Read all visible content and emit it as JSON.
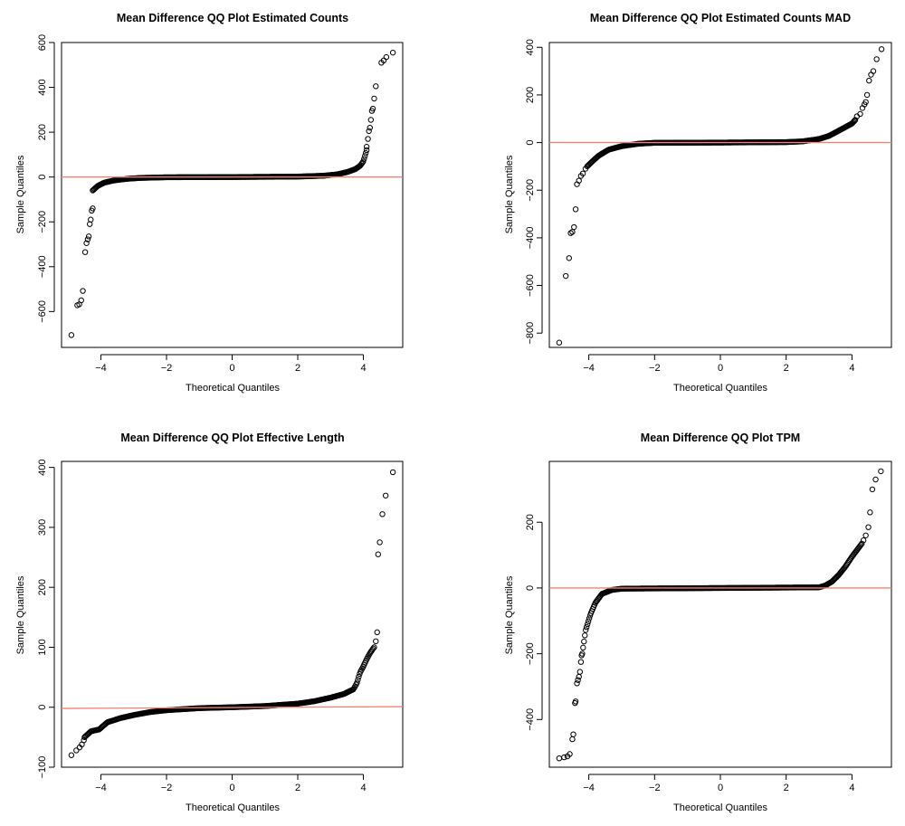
{
  "chart_data": [
    {
      "type": "scatter",
      "title": "Mean Difference QQ Plot Estimated Counts",
      "xlabel": "Theoretical Quantiles",
      "ylabel": "Sample Quantiles",
      "xlim": [
        -5.2,
        5.2
      ],
      "ylim": [
        -760,
        600
      ],
      "xticks": [
        -4,
        -2,
        0,
        2,
        4
      ],
      "yticks": [
        -600,
        -400,
        -200,
        0,
        200,
        400,
        600
      ],
      "reference_line": {
        "y": 0,
        "color": "#f4826e"
      },
      "core": {
        "range": [
          -4.25,
          4.1
        ],
        "curve": [
          [
            -4.25,
            -60
          ],
          [
            -4.1,
            -40
          ],
          [
            -3.9,
            -25
          ],
          [
            -3.6,
            -15
          ],
          [
            -3.2,
            -8
          ],
          [
            -2.8,
            -4
          ],
          [
            -2.0,
            -1
          ],
          [
            0,
            0
          ],
          [
            2.0,
            2
          ],
          [
            2.8,
            6
          ],
          [
            3.2,
            12
          ],
          [
            3.5,
            22
          ],
          [
            3.75,
            35
          ],
          [
            3.9,
            50
          ],
          [
            4.0,
            70
          ],
          [
            4.05,
            95
          ],
          [
            4.1,
            120
          ]
        ]
      },
      "points": [
        [
          -4.9,
          -705
        ],
        [
          -4.72,
          -572
        ],
        [
          -4.66,
          -568
        ],
        [
          -4.6,
          -550
        ],
        [
          -4.55,
          -508
        ],
        [
          -4.48,
          -335
        ],
        [
          -4.44,
          -295
        ],
        [
          -4.4,
          -278
        ],
        [
          -4.37,
          -265
        ],
        [
          -4.34,
          -210
        ],
        [
          -4.31,
          -190
        ],
        [
          -4.28,
          -150
        ],
        [
          -4.25,
          -140
        ],
        [
          4.1,
          135
        ],
        [
          4.14,
          170
        ],
        [
          4.17,
          205
        ],
        [
          4.2,
          220
        ],
        [
          4.23,
          255
        ],
        [
          4.26,
          295
        ],
        [
          4.29,
          305
        ],
        [
          4.33,
          350
        ],
        [
          4.38,
          405
        ],
        [
          4.55,
          510
        ],
        [
          4.62,
          520
        ],
        [
          4.7,
          535
        ],
        [
          4.9,
          555
        ]
      ]
    },
    {
      "type": "scatter",
      "title": "Mean Difference QQ Plot Estimated Counts MAD",
      "xlabel": "Theoretical Quantiles",
      "ylabel": "Sample Quantiles",
      "xlim": [
        -5.2,
        5.2
      ],
      "ylim": [
        -860,
        420
      ],
      "xticks": [
        -4,
        -2,
        0,
        2,
        4
      ],
      "yticks": [
        -800,
        -600,
        -400,
        -200,
        0,
        200,
        400
      ],
      "reference_line": {
        "y": 0,
        "color": "#f4826e"
      },
      "core": {
        "range": [
          -4.05,
          4.1
        ],
        "curve": [
          [
            -4.05,
            -100
          ],
          [
            -3.9,
            -80
          ],
          [
            -3.7,
            -55
          ],
          [
            -3.4,
            -30
          ],
          [
            -3.0,
            -15
          ],
          [
            -2.5,
            -5
          ],
          [
            -2.0,
            -1
          ],
          [
            0,
            0
          ],
          [
            2.0,
            2
          ],
          [
            2.5,
            5
          ],
          [
            3.0,
            15
          ],
          [
            3.3,
            28
          ],
          [
            3.6,
            50
          ],
          [
            3.8,
            65
          ],
          [
            4.0,
            80
          ],
          [
            4.1,
            95
          ]
        ]
      },
      "points": [
        [
          -4.9,
          -840
        ],
        [
          -4.7,
          -560
        ],
        [
          -4.6,
          -485
        ],
        [
          -4.55,
          -380
        ],
        [
          -4.5,
          -375
        ],
        [
          -4.45,
          -355
        ],
        [
          -4.4,
          -280
        ],
        [
          -4.36,
          -175
        ],
        [
          -4.3,
          -160
        ],
        [
          -4.24,
          -140
        ],
        [
          -4.18,
          -130
        ],
        [
          -4.1,
          -110
        ],
        [
          4.15,
          110
        ],
        [
          4.25,
          120
        ],
        [
          4.32,
          145
        ],
        [
          4.38,
          160
        ],
        [
          4.42,
          170
        ],
        [
          4.46,
          200
        ],
        [
          4.52,
          260
        ],
        [
          4.58,
          285
        ],
        [
          4.65,
          300
        ],
        [
          4.75,
          350
        ],
        [
          4.9,
          392
        ]
      ]
    },
    {
      "type": "scatter",
      "title": "Mean Difference QQ Plot Effective Length",
      "xlabel": "Theoretical Quantiles",
      "ylabel": "Sample Quantiles",
      "xlim": [
        -5.2,
        5.2
      ],
      "ylim": [
        -100,
        410
      ],
      "xticks": [
        -4,
        -2,
        0,
        2,
        4
      ],
      "yticks": [
        -100,
        0,
        100,
        200,
        300,
        400
      ],
      "reference_line": {
        "y0": -2,
        "y1": 1,
        "color": "#f4826e"
      },
      "core": {
        "range": [
          -4.5,
          4.3
        ],
        "curve": [
          [
            -4.5,
            -50
          ],
          [
            -4.3,
            -40
          ],
          [
            -4.05,
            -37
          ],
          [
            -3.95,
            -32
          ],
          [
            -3.8,
            -25
          ],
          [
            -3.4,
            -18
          ],
          [
            -3.0,
            -13
          ],
          [
            -2.5,
            -8
          ],
          [
            -2.0,
            -5
          ],
          [
            -1.0,
            -1.5
          ],
          [
            0,
            0
          ],
          [
            1.0,
            2
          ],
          [
            2.0,
            6
          ],
          [
            2.5,
            10
          ],
          [
            3.0,
            16
          ],
          [
            3.4,
            22
          ],
          [
            3.7,
            30
          ],
          [
            3.8,
            40
          ],
          [
            3.9,
            58
          ],
          [
            4.0,
            68
          ],
          [
            4.1,
            80
          ],
          [
            4.2,
            90
          ],
          [
            4.3,
            98
          ]
        ]
      },
      "points": [
        [
          -4.9,
          -80
        ],
        [
          -4.75,
          -72
        ],
        [
          -4.65,
          -67
        ],
        [
          -4.58,
          -62
        ],
        [
          -4.52,
          -55
        ],
        [
          4.33,
          100
        ],
        [
          4.38,
          110
        ],
        [
          4.42,
          125
        ],
        [
          4.45,
          255
        ],
        [
          4.5,
          275
        ],
        [
          4.58,
          322
        ],
        [
          4.68,
          353
        ],
        [
          4.9,
          392
        ]
      ]
    },
    {
      "type": "scatter",
      "title": "Mean Difference QQ Plot TPM",
      "xlabel": "Theoretical Quantiles",
      "ylabel": "Sample Quantiles",
      "xlim": [
        -5.2,
        5.2
      ],
      "ylim": [
        -545,
        385
      ],
      "xticks": [
        -4,
        -2,
        0,
        2,
        4
      ],
      "yticks": [
        -400,
        -200,
        0,
        200
      ],
      "reference_line": {
        "y": 0,
        "color": "#f4826e"
      },
      "core": {
        "range": [
          -4.2,
          4.3
        ],
        "curve": [
          [
            -4.2,
            -200
          ],
          [
            -4.1,
            -130
          ],
          [
            -3.95,
            -80
          ],
          [
            -3.8,
            -45
          ],
          [
            -3.6,
            -18
          ],
          [
            -3.3,
            -6
          ],
          [
            -3.0,
            -2
          ],
          [
            0,
            0
          ],
          [
            3.0,
            2
          ],
          [
            3.2,
            8
          ],
          [
            3.4,
            20
          ],
          [
            3.6,
            40
          ],
          [
            3.8,
            65
          ],
          [
            4.0,
            95
          ],
          [
            4.15,
            115
          ],
          [
            4.3,
            135
          ]
        ]
      },
      "points": [
        [
          -4.9,
          -518
        ],
        [
          -4.75,
          -515
        ],
        [
          -4.65,
          -512
        ],
        [
          -4.58,
          -505
        ],
        [
          -4.5,
          -460
        ],
        [
          -4.47,
          -445
        ],
        [
          -4.42,
          -350
        ],
        [
          -4.4,
          -345
        ],
        [
          -4.36,
          -290
        ],
        [
          -4.33,
          -280
        ],
        [
          -4.3,
          -270
        ],
        [
          -4.27,
          -255
        ],
        [
          -4.24,
          -225
        ],
        [
          -4.22,
          -205
        ],
        [
          4.35,
          145
        ],
        [
          4.42,
          160
        ],
        [
          4.5,
          185
        ],
        [
          4.55,
          230
        ],
        [
          4.62,
          300
        ],
        [
          4.72,
          330
        ],
        [
          4.88,
          355
        ]
      ]
    }
  ]
}
